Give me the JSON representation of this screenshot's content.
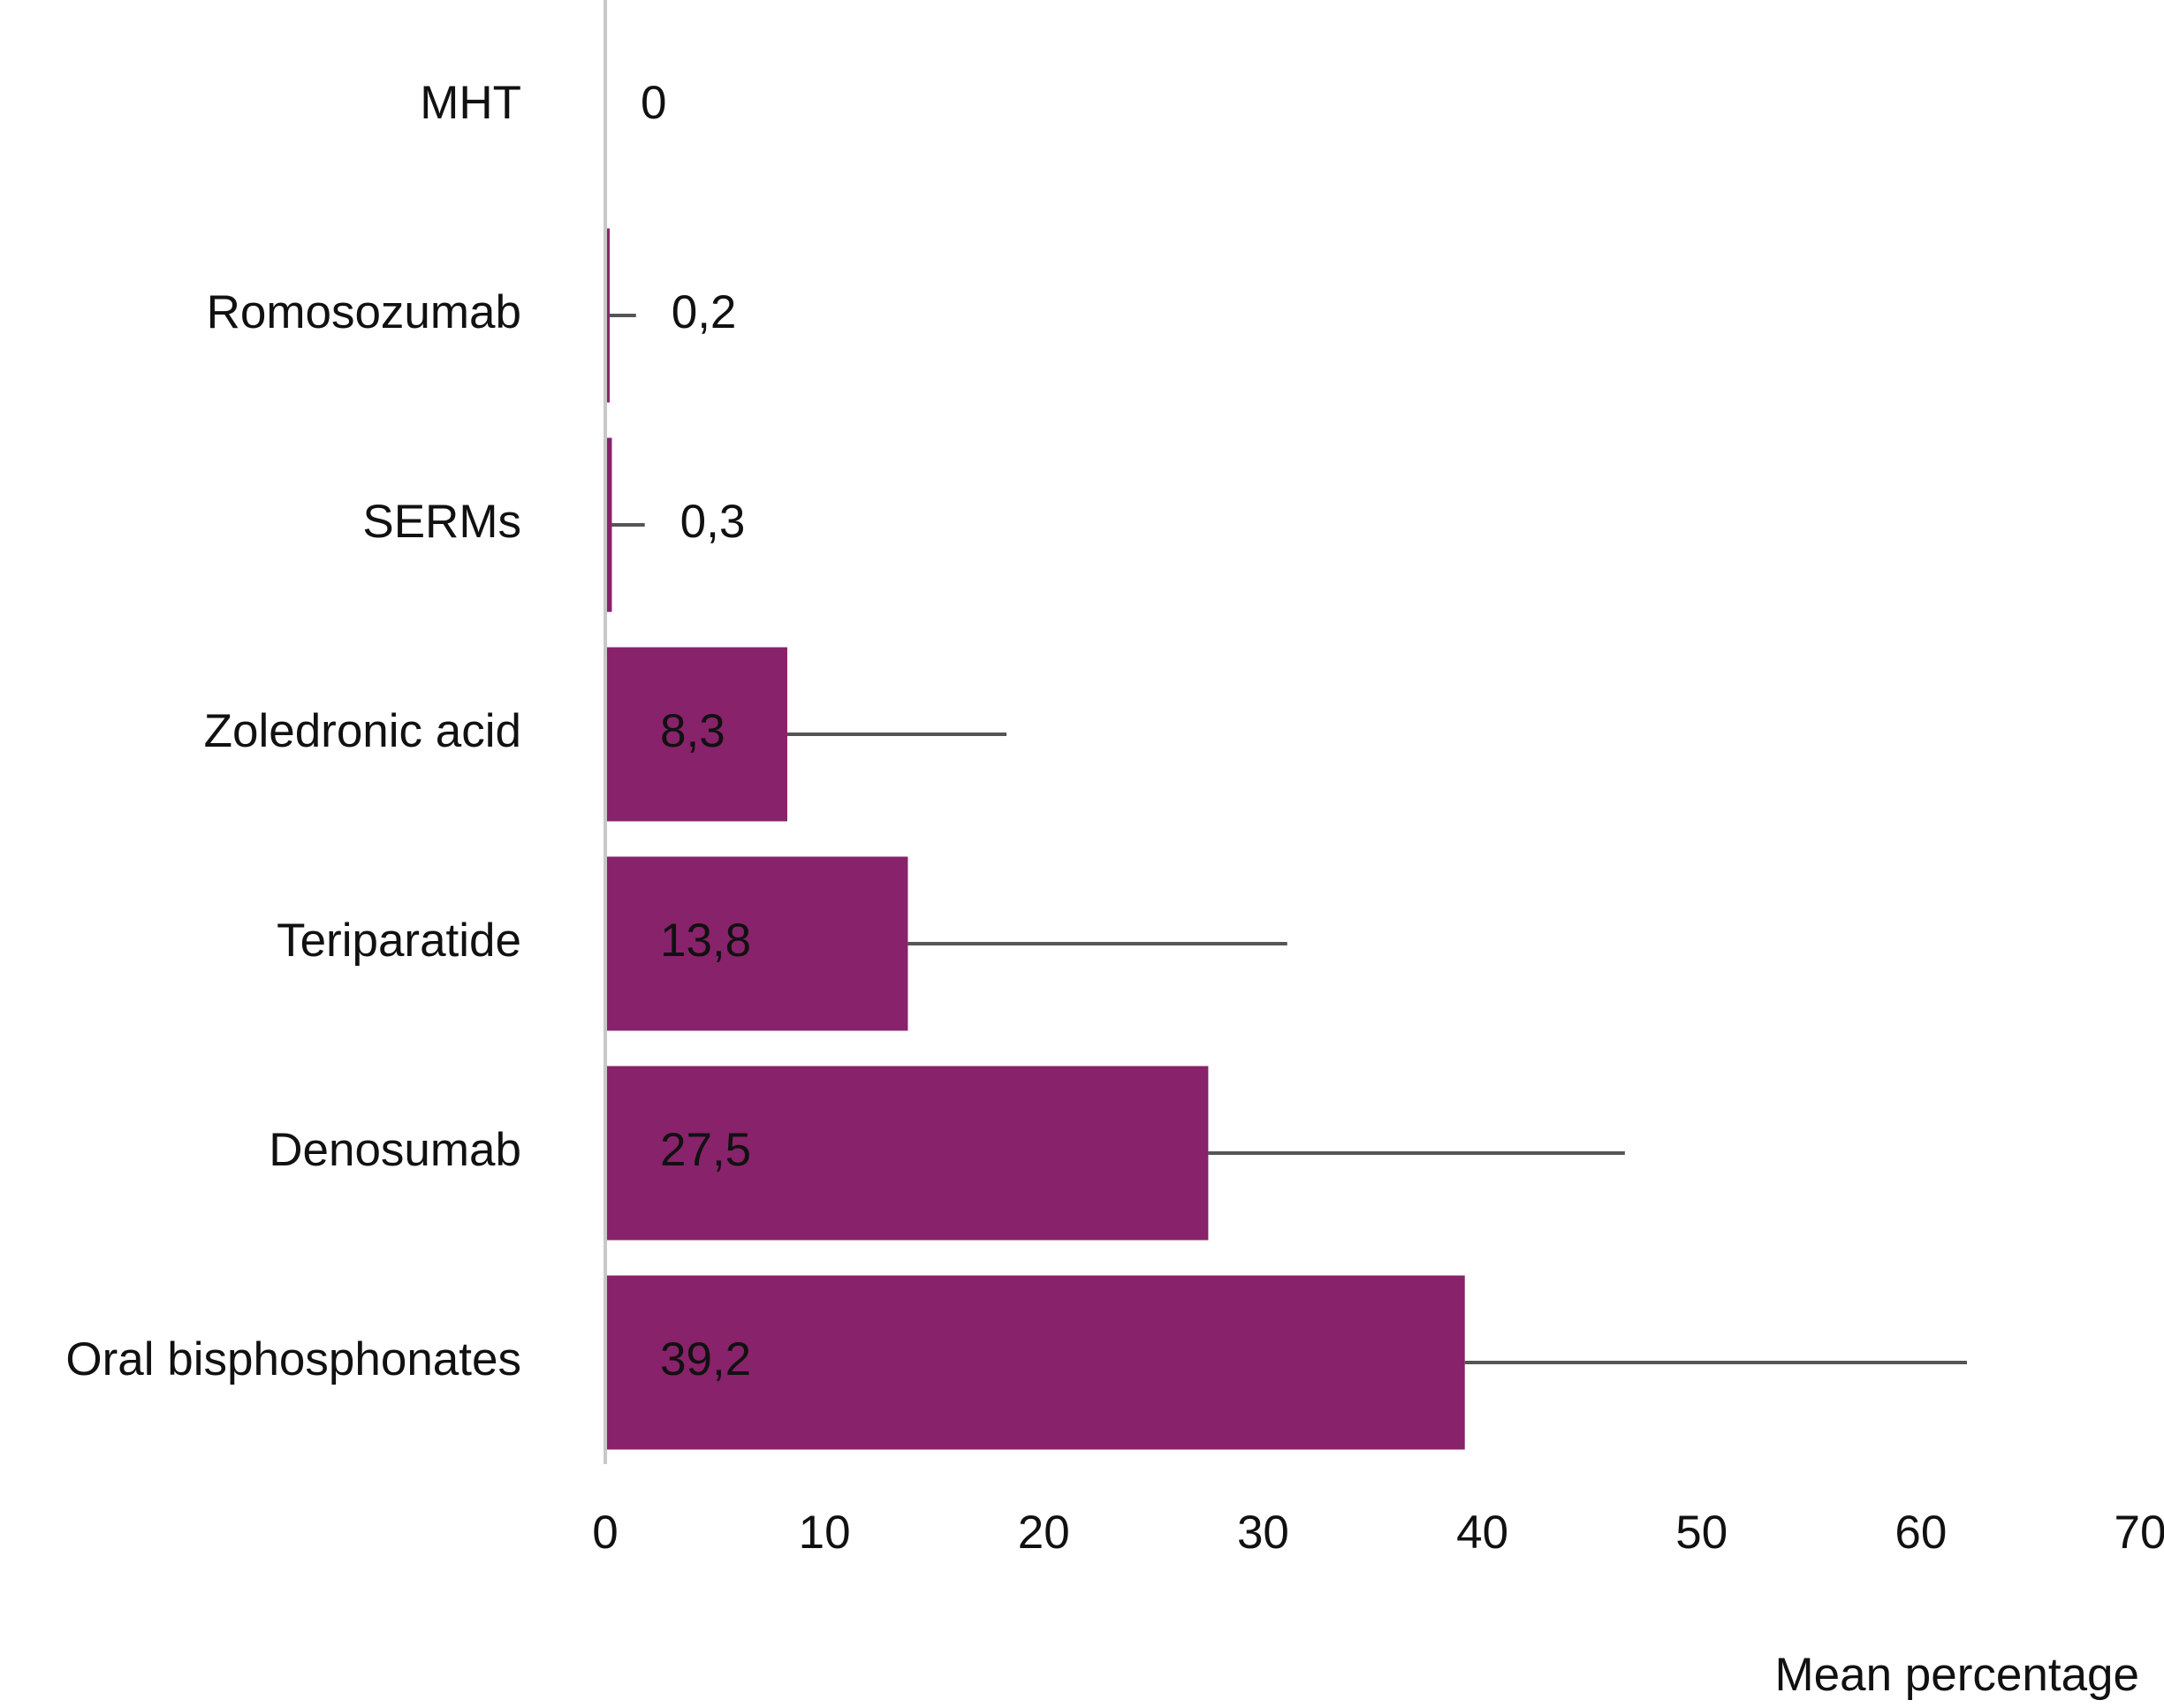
{
  "chart_data": {
    "type": "bar",
    "orientation": "horizontal",
    "x_label": "Mean percentage",
    "categories": [
      "MHT",
      "Romosozumab",
      "SERMs",
      "Zoledronic acid",
      "Teriparatide",
      "Denosumab",
      "Oral bisphosphonates"
    ],
    "values": [
      0,
      0.2,
      0.3,
      8.3,
      13.8,
      27.5,
      39.2
    ],
    "value_labels": [
      "0",
      "0,2",
      "0,3",
      "8,3",
      "13,8",
      "27,5",
      "39,2"
    ],
    "errors": [
      0,
      1.2,
      1.5,
      10.0,
      17.3,
      19.0,
      22.9
    ],
    "color": "#88226a",
    "xlim": [
      0,
      70
    ],
    "xticks": [
      0,
      10,
      20,
      30,
      40,
      50,
      60,
      70
    ],
    "grid": false
  }
}
